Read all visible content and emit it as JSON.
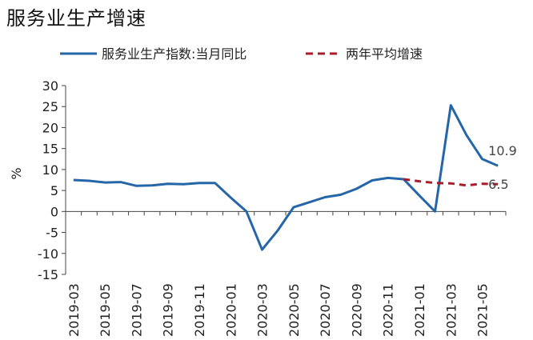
{
  "chart_data": {
    "type": "line",
    "title": "服务业生产增速",
    "ylabel": "%",
    "ylim": [
      -15,
      30
    ],
    "yticks": [
      30,
      25,
      20,
      15,
      10,
      5,
      0,
      -5,
      -10,
      -15
    ],
    "x": [
      "2019-03",
      "2019-04",
      "2019-05",
      "2019-06",
      "2019-07",
      "2019-08",
      "2019-09",
      "2019-10",
      "2019-11",
      "2019-12",
      "2020-01",
      "2020-02",
      "2020-03",
      "2020-04",
      "2020-05",
      "2020-06",
      "2020-07",
      "2020-08",
      "2020-09",
      "2020-10",
      "2020-11",
      "2020-12",
      "2021-01",
      "2021-02",
      "2021-03",
      "2021-04",
      "2021-05",
      "2021-06"
    ],
    "xtick_labels": [
      "2019-03",
      "2019-05",
      "2019-07",
      "2019-09",
      "2019-11",
      "2020-01",
      "2020-03",
      "2020-05",
      "2020-07",
      "2020-09",
      "2020-11",
      "2021-01",
      "2021-03",
      "2021-05"
    ],
    "series": [
      {
        "name": "服务业生产指数:当月同比",
        "color": "#2566a8",
        "style": "solid",
        "values": [
          7.5,
          7.3,
          6.9,
          7.0,
          6.1,
          6.2,
          6.6,
          6.5,
          6.8,
          6.8,
          3.3,
          0.0,
          -9.1,
          -4.5,
          1.0,
          2.2,
          3.4,
          4.0,
          5.4,
          7.4,
          8.0,
          7.7,
          3.8,
          0.0,
          25.3,
          18.2,
          12.5,
          10.9
        ],
        "end_label": "10.9"
      },
      {
        "name": "两年平均增速",
        "color": "#a81c2c",
        "style": "dashed",
        "values": [
          null,
          null,
          null,
          null,
          null,
          null,
          null,
          null,
          null,
          null,
          null,
          null,
          null,
          null,
          null,
          null,
          null,
          null,
          null,
          null,
          null,
          7.7,
          7.2,
          6.8,
          6.7,
          6.2,
          6.6,
          6.5
        ],
        "end_label": "6.5"
      }
    ],
    "legend": "top",
    "grid": false
  }
}
